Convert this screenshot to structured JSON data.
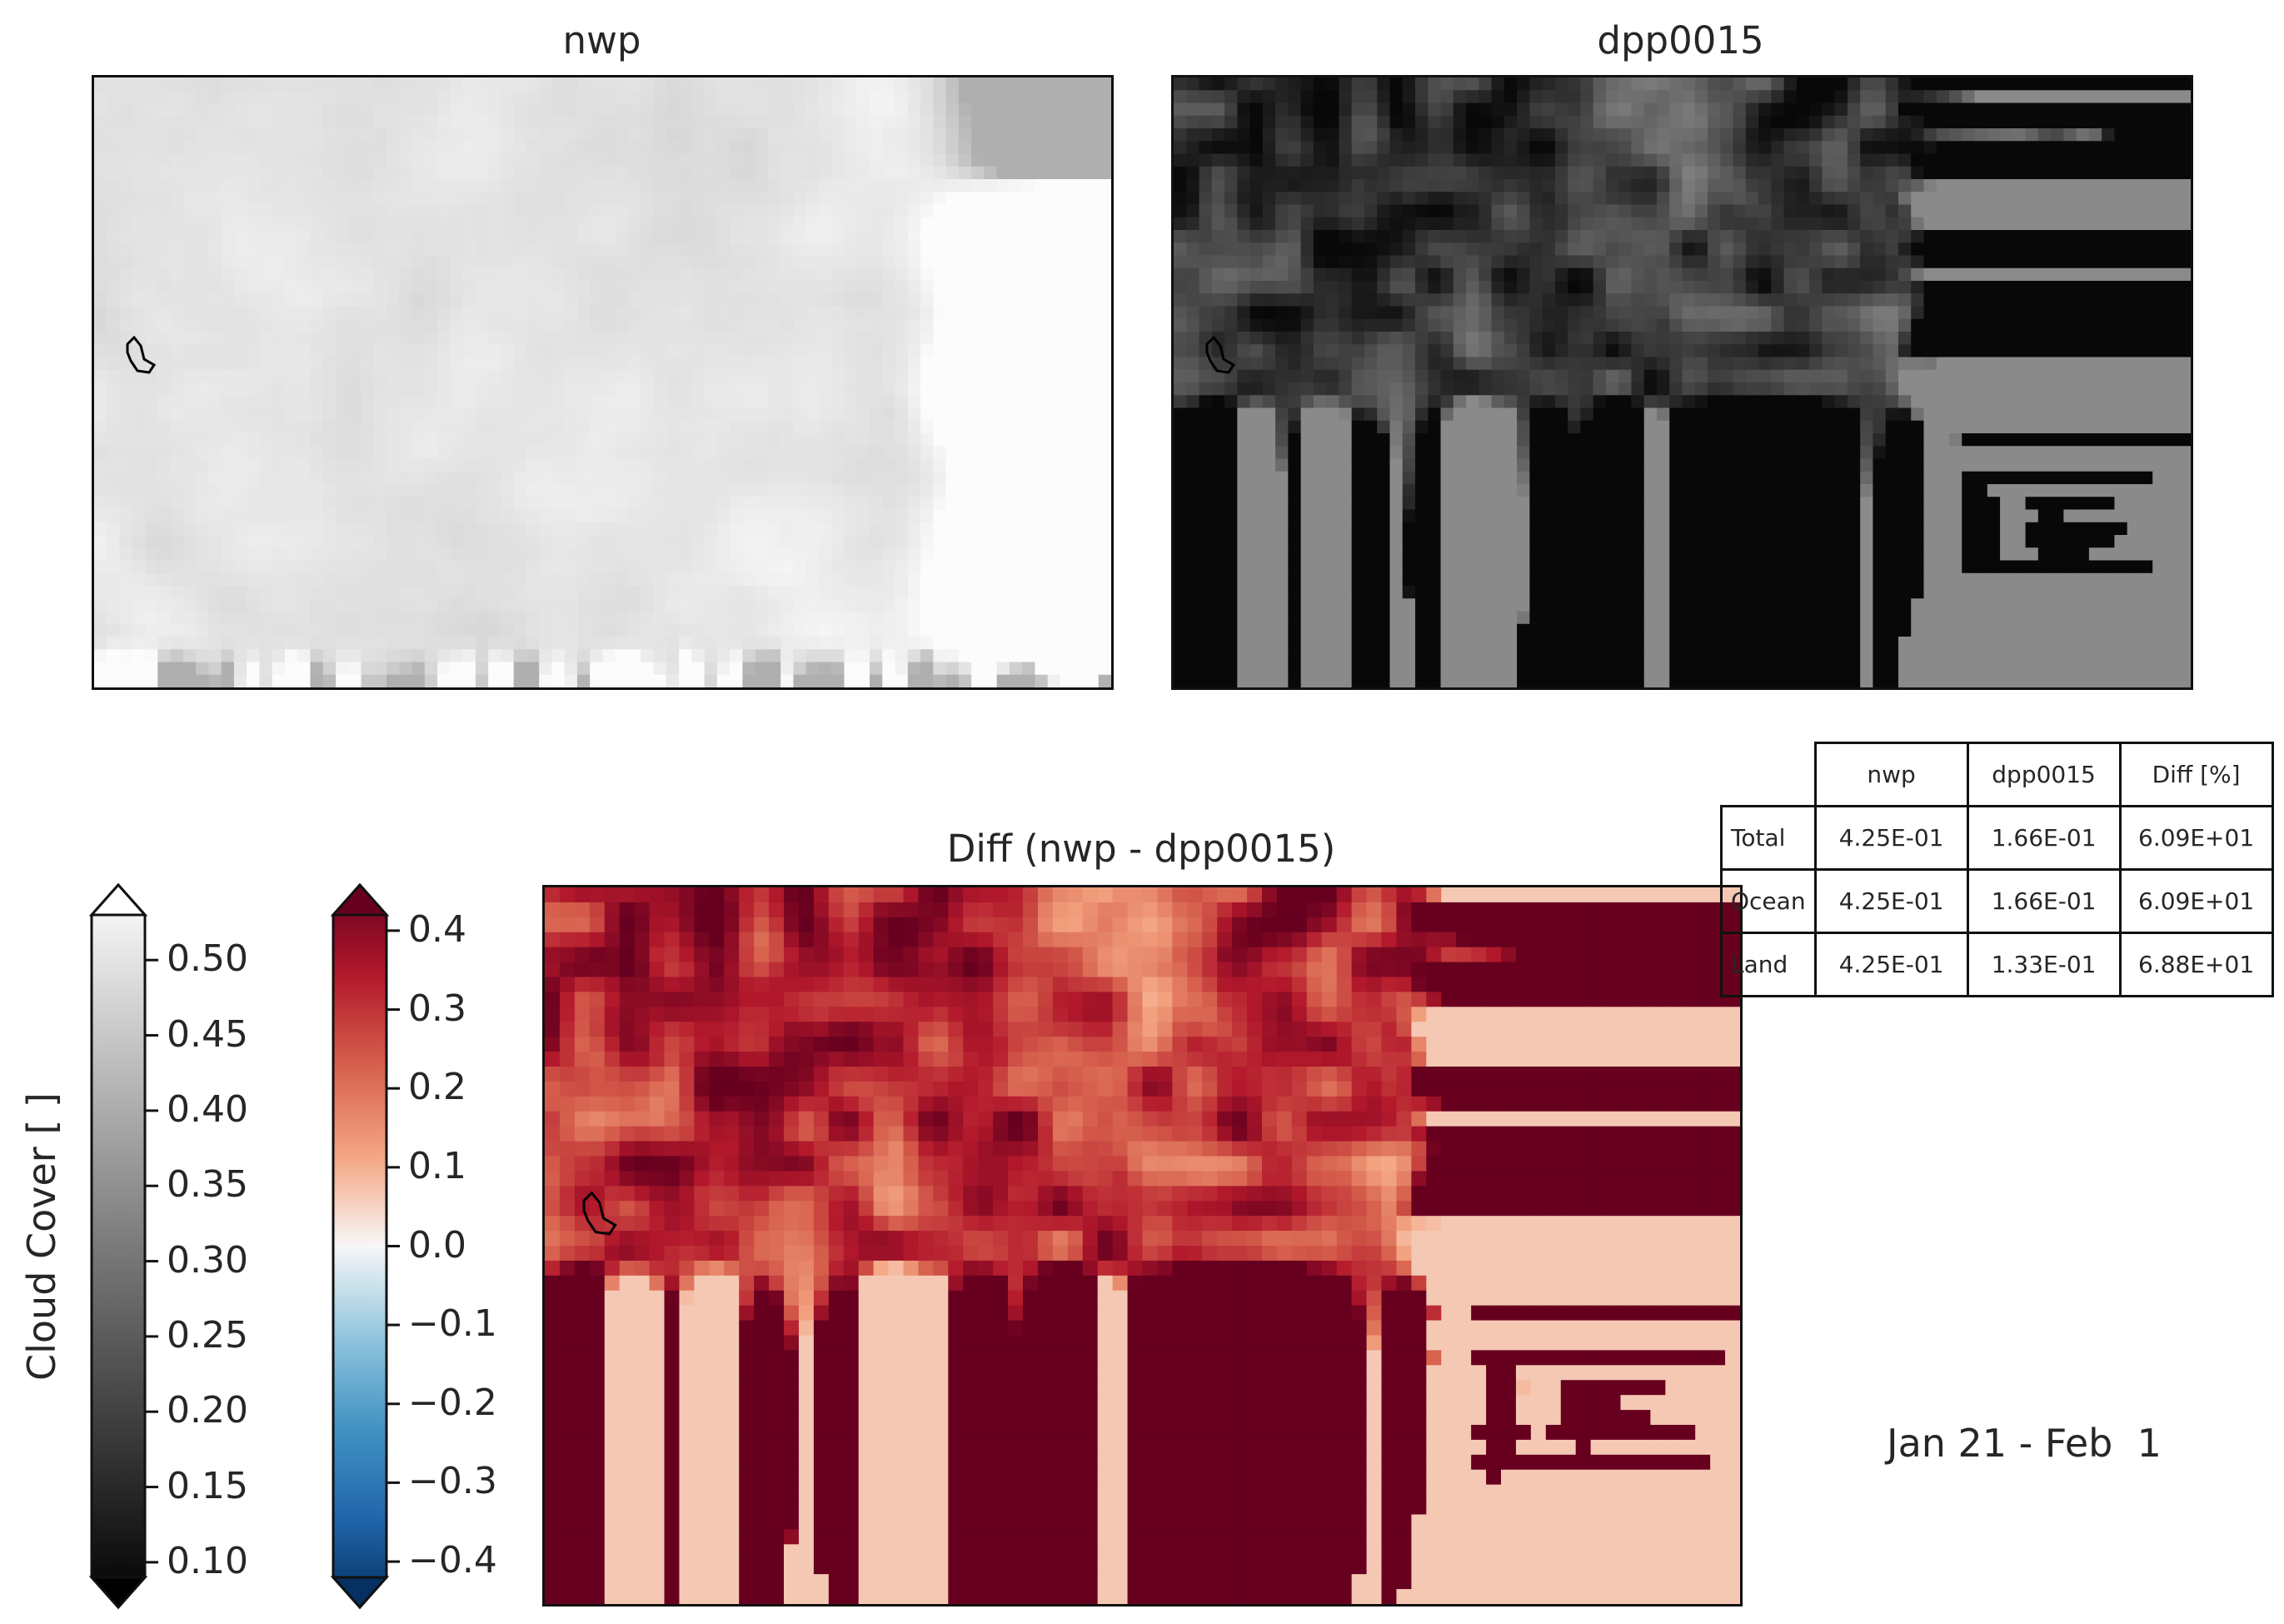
{
  "chart_data": [
    {
      "type": "heatmap",
      "title": "nwp",
      "colormap": "greys",
      "colorbar": "cloud-cover"
    },
    {
      "type": "heatmap",
      "title": "dpp0015",
      "colormap": "greys",
      "colorbar": "cloud-cover"
    },
    {
      "type": "heatmap",
      "title": "Diff (nwp - dpp0015)",
      "colormap": "RdBu_r",
      "colorbar": "diff"
    }
  ],
  "colorbars": {
    "cloud_cover": {
      "label": "Cloud Cover [ ]",
      "ticks": [
        "0.50",
        "0.45",
        "0.40",
        "0.35",
        "0.30",
        "0.25",
        "0.20",
        "0.15",
        "0.10"
      ],
      "range": [
        0.09,
        0.53
      ],
      "extend": "both"
    },
    "diff": {
      "ticks": [
        "0.4",
        "0.3",
        "0.2",
        "0.1",
        "0.0",
        "−0.1",
        "−0.2",
        "−0.3",
        "−0.4"
      ],
      "range": [
        -0.42,
        0.42
      ],
      "extend": "both"
    }
  },
  "table": {
    "columns": [
      "nwp",
      "dpp0015",
      "Diff [%]"
    ],
    "rows": [
      {
        "label": "Total",
        "values": [
          "4.25E-01",
          "1.66E-01",
          "6.09E+01"
        ]
      },
      {
        "label": "Ocean",
        "values": [
          "4.25E-01",
          "1.66E-01",
          "6.09E+01"
        ]
      },
      {
        "label": "Land",
        "values": [
          "4.25E-01",
          "1.33E-01",
          "6.88E+01"
        ]
      }
    ]
  },
  "date_range": "Jan 21 - Feb  1",
  "colors": {
    "diff_dark_red": "#67001f",
    "diff_mid_red": "#d6604d",
    "diff_white": "#f7f7f7",
    "diff_dark_blue": "#053061",
    "grey_white": "#ffffff",
    "grey_black": "#000000"
  }
}
